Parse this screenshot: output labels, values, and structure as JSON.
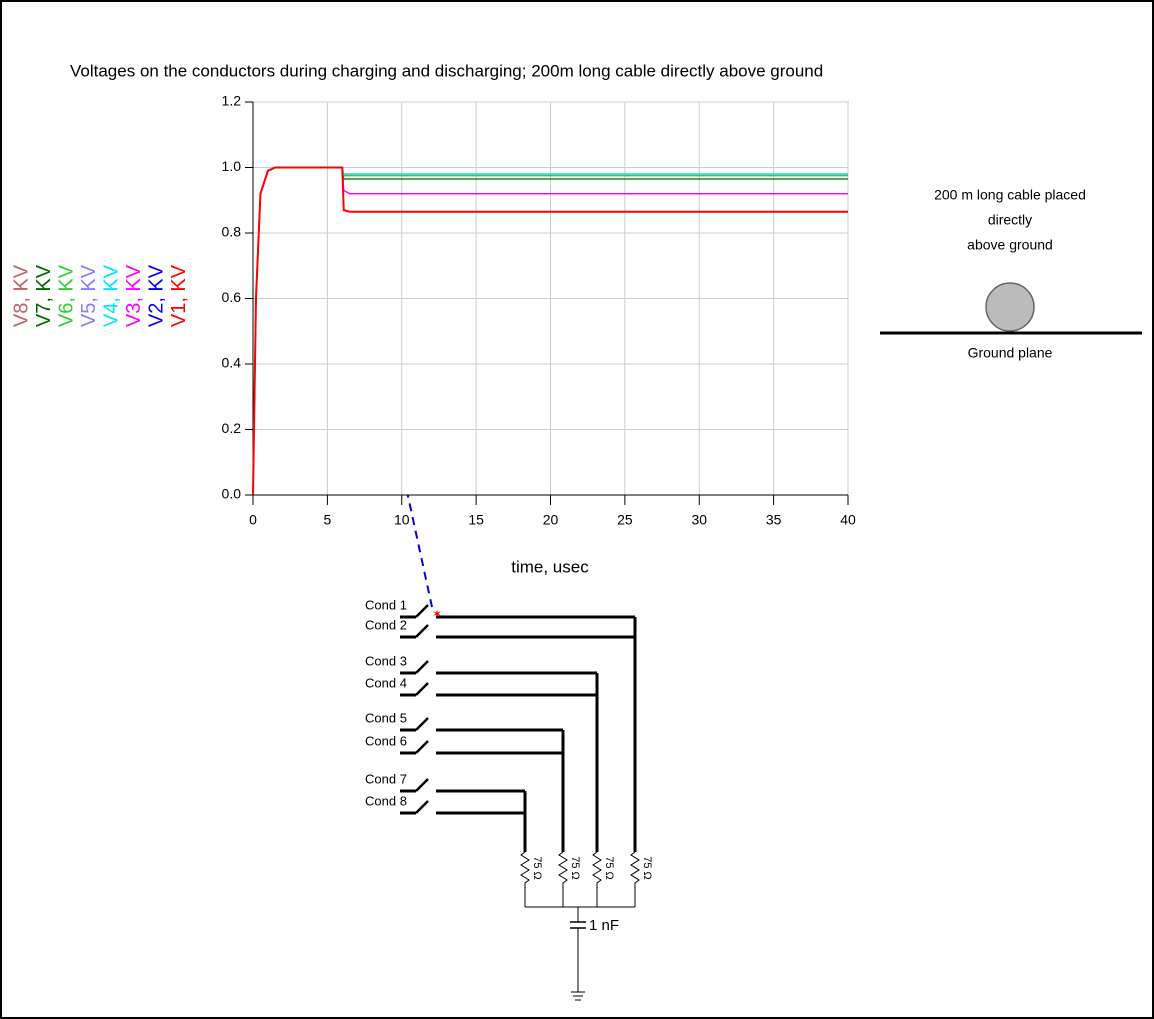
{
  "chart_data": {
    "type": "line",
    "title": "Voltages on the conductors during charging and discharging; 200m long cable directly above ground",
    "x_label": "time, usec",
    "x": [
      0,
      0.2,
      0.5,
      1,
      1.5,
      6,
      6.1,
      6.5,
      40
    ],
    "series": [
      {
        "name": "V1, KV",
        "color": "#ff0000",
        "values": [
          0,
          0.6,
          0.92,
          0.99,
          1,
          1,
          0.87,
          0.865,
          0.865
        ]
      },
      {
        "name": "V2, KV",
        "color": "#0000ff",
        "values": [
          0,
          0.6,
          0.92,
          0.99,
          1,
          1,
          0.87,
          0.865,
          0.865
        ]
      },
      {
        "name": "V3, KV",
        "color": "#ff00ff",
        "values": [
          0,
          0.6,
          0.92,
          0.99,
          1,
          1,
          0.93,
          0.92,
          0.92
        ]
      },
      {
        "name": "V4, KV",
        "color": "#00e5ff",
        "values": [
          0,
          0.6,
          0.92,
          0.99,
          1,
          1,
          0.98,
          0.98,
          0.98
        ]
      },
      {
        "name": "V5, KV",
        "color": "#8080ff",
        "values": [
          0,
          0.6,
          0.92,
          0.99,
          1,
          1,
          0.93,
          0.92,
          0.92
        ]
      },
      {
        "name": "V6, KV",
        "color": "#33cc33",
        "values": [
          0,
          0.6,
          0.92,
          0.99,
          1,
          1,
          0.975,
          0.975,
          0.975
        ]
      },
      {
        "name": "V7, KV",
        "color": "#006600",
        "values": [
          0,
          0.6,
          0.92,
          0.99,
          1,
          1,
          0.965,
          0.965,
          0.965
        ]
      },
      {
        "name": "V8, KV",
        "color": "#c06060",
        "values": [
          0,
          0.6,
          0.92,
          0.99,
          1,
          1,
          0.98,
          0.98,
          0.98
        ]
      }
    ],
    "xlim": [
      0,
      40
    ],
    "xticks": [
      0,
      5,
      10,
      15,
      20,
      25,
      30,
      35,
      40
    ],
    "ylim": [
      0,
      1.2
    ],
    "yticks": [
      {
        "value": 0,
        "label": "0.0"
      },
      0.2,
      0.4,
      0.6,
      0.8,
      {
        "value": 1,
        "label": "1.0"
      },
      1.2
    ],
    "grid": true
  },
  "cable_sketch": {
    "caption": [
      "200 m long cable placed",
      "directly",
      "above ground"
    ],
    "ground_label": "Ground plane"
  },
  "circuit": {
    "conductors": [
      "Cond 1",
      "Cond 2",
      "Cond 3",
      "Cond 4",
      "Cond 5",
      "Cond 6",
      "Cond 7",
      "Cond 8"
    ],
    "resistors": [
      "75 Ω",
      "75 Ω",
      "75 Ω",
      "75 Ω"
    ],
    "capacitor": "1 nF"
  }
}
